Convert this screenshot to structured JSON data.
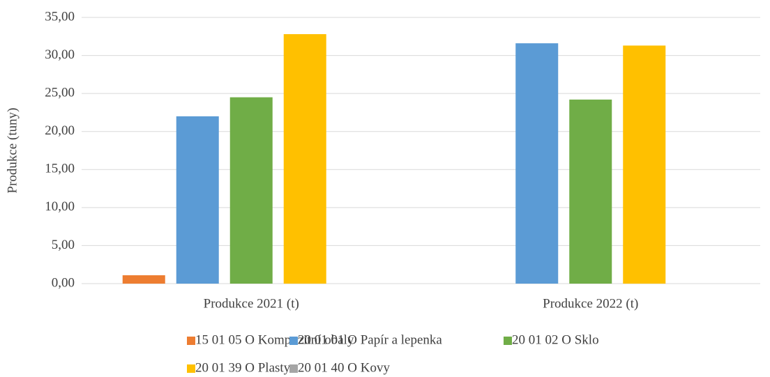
{
  "chart_data": {
    "type": "bar",
    "y_label": "Produkce (tuny)",
    "categories": [
      "Produkce 2021 (t)",
      "Produkce 2022 (t)"
    ],
    "series": [
      {
        "name": "15 01 05 O Kompozitní obaly",
        "color": "#ed7d31",
        "values": [
          1.1,
          0
        ]
      },
      {
        "name": "20 01 01 O Papír a lepenka",
        "color": "#5b9bd5",
        "values": [
          22.0,
          31.6
        ]
      },
      {
        "name": "20 01 02 O Sklo",
        "color": "#70ad47",
        "values": [
          24.5,
          24.2
        ]
      },
      {
        "name": "20 01 39 O Plasty",
        "color": "#ffc000",
        "values": [
          32.8,
          31.3
        ]
      },
      {
        "name": "20 01 40 O Kovy",
        "color": "#a5a5a5",
        "values": [
          0,
          0
        ]
      }
    ],
    "ylim": [
      0,
      35
    ],
    "yticks": [
      {
        "value": 0,
        "label": "0,00"
      },
      {
        "value": 5,
        "label": "5,00"
      },
      {
        "value": 10,
        "label": "10,00"
      },
      {
        "value": 15,
        "label": "15,00"
      },
      {
        "value": 20,
        "label": "20,00"
      },
      {
        "value": 25,
        "label": "25,00"
      },
      {
        "value": 30,
        "label": "30,00"
      },
      {
        "value": 35,
        "label": "35,00"
      }
    ],
    "grid": true
  }
}
